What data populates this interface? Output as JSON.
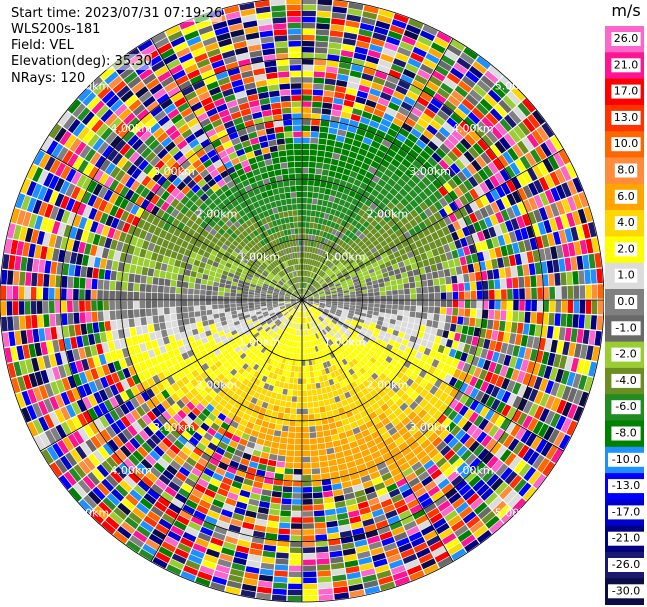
{
  "info": {
    "start_time": "Start time: 2023/07/31 07:19:26",
    "instrument": "WLS200s-181",
    "field": "Field: VEL",
    "elevation": "Elevation(deg): 35.30",
    "nrays": "NRays: 120"
  },
  "colorbar": {
    "unit": "m/s",
    "ticks": [
      "26.0",
      "21.0",
      "17.0",
      "13.0",
      "10.0",
      "8.0",
      "6.0",
      "4.0",
      "2.0",
      "1.0",
      "0.0",
      "-1.0",
      "-2.0",
      "-4.0",
      "-6.0",
      "-8.0",
      "-10.0",
      "-13.0",
      "-17.0",
      "-21.0",
      "-26.0",
      "-30.0"
    ],
    "colors": [
      "#ff66cc",
      "#ff1493",
      "#ff0000",
      "#ff3300",
      "#ff6600",
      "#ff8c3c",
      "#ffa500",
      "#ffd700",
      "#ffff00",
      "#dcdcdc",
      "#808080",
      "#696969",
      "#9acd32",
      "#6b8e23",
      "#228b22",
      "#008000",
      "#1e90ff",
      "#0000ff",
      "#0000cd",
      "#000080",
      "#191970",
      "#0b0b45"
    ]
  },
  "chart_data": {
    "type": "heatmap",
    "field": "VEL",
    "units": "m/s",
    "nrays": 120,
    "range_rings_km": [
      1,
      2,
      3,
      4,
      5
    ],
    "ring_labels": [
      "1.00km",
      "2.00km",
      "3.00km",
      "4.00km",
      "5.00km"
    ],
    "ring_label_bearings_deg": [
      45,
      135,
      225,
      315
    ],
    "spoke_bearings_deg": [
      0,
      30,
      60,
      90,
      120,
      150,
      180,
      210,
      240,
      270,
      300,
      330
    ],
    "max_range_km": 5.0,
    "color_bounds_ms": [
      -30,
      -26,
      -21,
      -17,
      -13,
      -10,
      -8,
      -6,
      -4,
      -2,
      -1,
      0,
      1,
      2,
      4,
      6,
      8,
      10,
      13,
      17,
      21,
      26
    ]
  }
}
